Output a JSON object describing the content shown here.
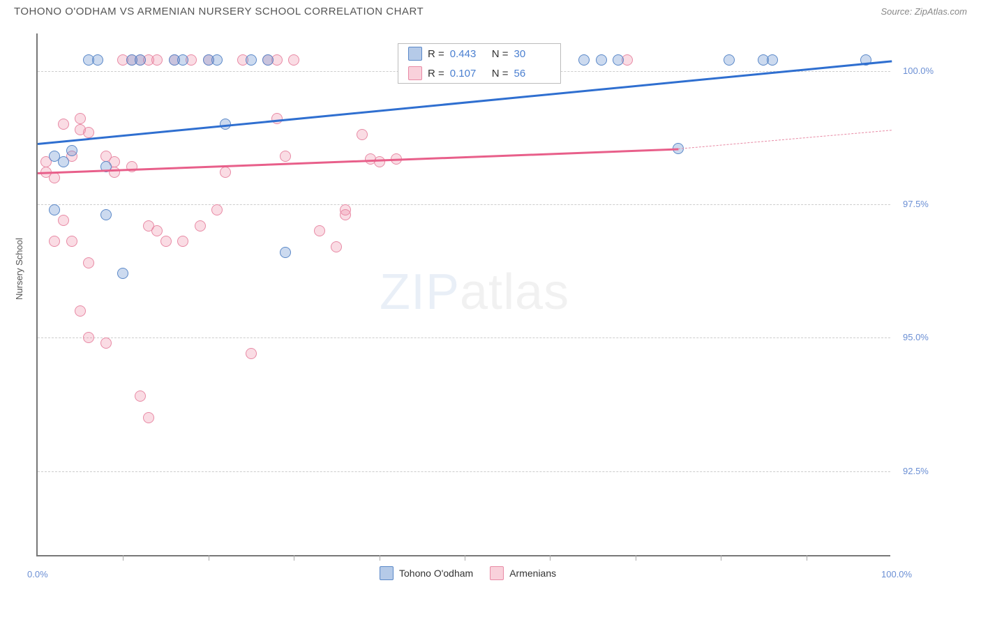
{
  "title": "TOHONO O'ODHAM VS ARMENIAN NURSERY SCHOOL CORRELATION CHART",
  "source": "Source: ZipAtlas.com",
  "watermark_zip": "ZIP",
  "watermark_atlas": "atlas",
  "chart": {
    "type": "scatter",
    "xlim": [
      0,
      100
    ],
    "ylim": [
      90.9,
      100.7
    ],
    "xlabel": "",
    "ylabel": "Nursery School",
    "background_color": "#ffffff",
    "grid_color": "#cccccc",
    "axis_color": "#777777",
    "tick_color": "#6b8fd4",
    "ytick_values": [
      92.5,
      95.0,
      97.5,
      100.0
    ],
    "ytick_labels": [
      "92.5%",
      "95.0%",
      "97.5%",
      "100.0%"
    ],
    "xtick_values": [
      0,
      100
    ],
    "xtick_labels": [
      "0.0%",
      "100.0%"
    ],
    "xtick_minor": [
      10,
      20,
      30,
      40,
      50,
      60,
      70,
      80,
      90
    ],
    "marker_size": 16,
    "series": [
      {
        "name": "Tohono O'odham",
        "color_fill": "rgba(108,150,210,0.35)",
        "color_stroke": "#5a88c8",
        "trend_color": "#2f6fd0",
        "trend_width": 3,
        "R": "0.443",
        "N": "30",
        "trend": {
          "x1": 0,
          "y1": 98.65,
          "x2": 100,
          "y2": 100.2
        },
        "points": [
          [
            2,
            98.4
          ],
          [
            3,
            98.3
          ],
          [
            2,
            97.4
          ],
          [
            6,
            100.2
          ],
          [
            7,
            100.2
          ],
          [
            11,
            100.2
          ],
          [
            12,
            100.2
          ],
          [
            16,
            100.2
          ],
          [
            17,
            100.2
          ],
          [
            20,
            100.2
          ],
          [
            21,
            100.2
          ],
          [
            25,
            100.2
          ],
          [
            27,
            100.2
          ],
          [
            8,
            98.2
          ],
          [
            22,
            99.0
          ],
          [
            64,
            100.2
          ],
          [
            66,
            100.2
          ],
          [
            68,
            100.2
          ],
          [
            81,
            100.2
          ],
          [
            85,
            100.2
          ],
          [
            86,
            100.2
          ],
          [
            75,
            98.55
          ],
          [
            8,
            97.3
          ],
          [
            10,
            96.2
          ],
          [
            29,
            96.6
          ],
          [
            97,
            100.2
          ],
          [
            48,
            100.2
          ],
          [
            51,
            100.2
          ],
          [
            55,
            100.2
          ],
          [
            4,
            98.5
          ]
        ]
      },
      {
        "name": "Armenians",
        "color_fill": "rgba(240,140,165,0.30)",
        "color_stroke": "#e88aa5",
        "trend_color": "#e85f8a",
        "trend_width": 2.5,
        "R": "0.107",
        "N": "56",
        "trend": {
          "x1": 0,
          "y1": 98.1,
          "x2": 75,
          "y2": 98.55
        },
        "trend_dash": {
          "x1": 75,
          "y1": 98.55,
          "x2": 100,
          "y2": 98.9
        },
        "points": [
          [
            1,
            98.1
          ],
          [
            1,
            98.3
          ],
          [
            2,
            98.0
          ],
          [
            3,
            99.0
          ],
          [
            4,
            98.4
          ],
          [
            5,
            98.9
          ],
          [
            5,
            99.1
          ],
          [
            6,
            98.85
          ],
          [
            4,
            96.8
          ],
          [
            5,
            95.5
          ],
          [
            6,
            96.4
          ],
          [
            8,
            98.4
          ],
          [
            9,
            98.3
          ],
          [
            9,
            98.1
          ],
          [
            10,
            100.2
          ],
          [
            11,
            100.2
          ],
          [
            12,
            100.2
          ],
          [
            13,
            100.2
          ],
          [
            14,
            100.2
          ],
          [
            16,
            100.2
          ],
          [
            18,
            100.2
          ],
          [
            20,
            100.2
          ],
          [
            24,
            100.2
          ],
          [
            28,
            100.2
          ],
          [
            30,
            100.2
          ],
          [
            45,
            100.2
          ],
          [
            48,
            100.2
          ],
          [
            50,
            100.2
          ],
          [
            55,
            100.2
          ],
          [
            69,
            100.2
          ],
          [
            11,
            98.2
          ],
          [
            13,
            97.1
          ],
          [
            14,
            97.0
          ],
          [
            15,
            96.8
          ],
          [
            17,
            96.8
          ],
          [
            19,
            97.1
          ],
          [
            12,
            93.9
          ],
          [
            13,
            93.5
          ],
          [
            6,
            95.0
          ],
          [
            22,
            98.1
          ],
          [
            21,
            97.4
          ],
          [
            27,
            100.2
          ],
          [
            28,
            99.1
          ],
          [
            29,
            98.4
          ],
          [
            33,
            97.0
          ],
          [
            35,
            96.7
          ],
          [
            36,
            97.4
          ],
          [
            36,
            97.3
          ],
          [
            38,
            98.8
          ],
          [
            39,
            98.35
          ],
          [
            40,
            98.3
          ],
          [
            42,
            98.35
          ],
          [
            25,
            94.7
          ],
          [
            8,
            94.9
          ],
          [
            3,
            97.2
          ],
          [
            2,
            96.8
          ]
        ]
      }
    ]
  },
  "legend": {
    "items": [
      {
        "label": "Tohono O'odham",
        "swatch": "blue"
      },
      {
        "label": "Armenians",
        "swatch": "pink"
      }
    ]
  },
  "statbox": {
    "R_label": "R =",
    "N_label": "N ="
  }
}
